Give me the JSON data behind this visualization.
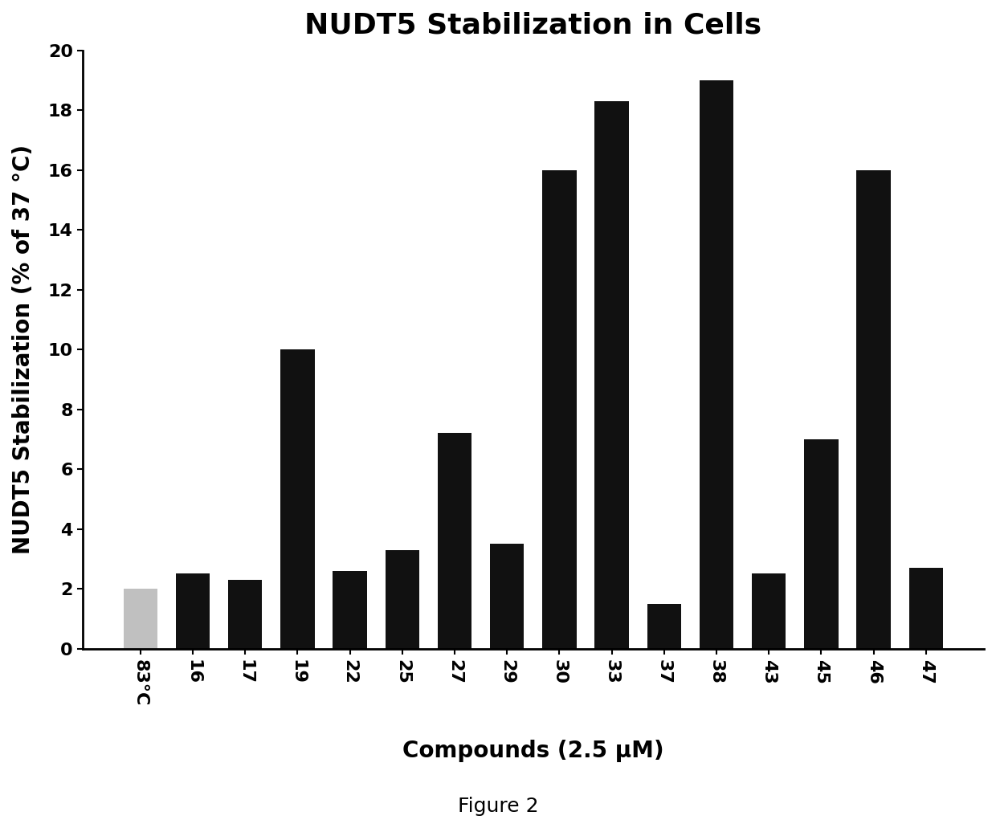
{
  "categories": [
    "83°C",
    "16",
    "17",
    "19",
    "22",
    "25",
    "27",
    "29",
    "30",
    "33",
    "37",
    "38",
    "43",
    "45",
    "46",
    "47"
  ],
  "values": [
    2.0,
    2.5,
    2.3,
    10.0,
    2.6,
    3.3,
    7.2,
    3.5,
    16.0,
    18.3,
    1.5,
    19.0,
    2.5,
    7.0,
    16.0,
    2.7
  ],
  "bar_colors": [
    "#c0c0c0",
    "#111111",
    "#111111",
    "#111111",
    "#111111",
    "#111111",
    "#111111",
    "#111111",
    "#111111",
    "#111111",
    "#111111",
    "#111111",
    "#111111",
    "#111111",
    "#111111",
    "#111111"
  ],
  "title": "NUDT5 Stabilization in Cells",
  "xlabel": "Compounds (2.5 μM)",
  "ylabel": "NUDT5 Stabilization (% of 37 °C)",
  "ylim": [
    0,
    20
  ],
  "yticks": [
    0,
    2,
    4,
    6,
    8,
    10,
    12,
    14,
    16,
    18,
    20
  ],
  "caption": "Figure 2",
  "title_fontsize": 26,
  "label_fontsize": 20,
  "tick_fontsize": 16,
  "caption_fontsize": 18,
  "background_color": "#ffffff"
}
